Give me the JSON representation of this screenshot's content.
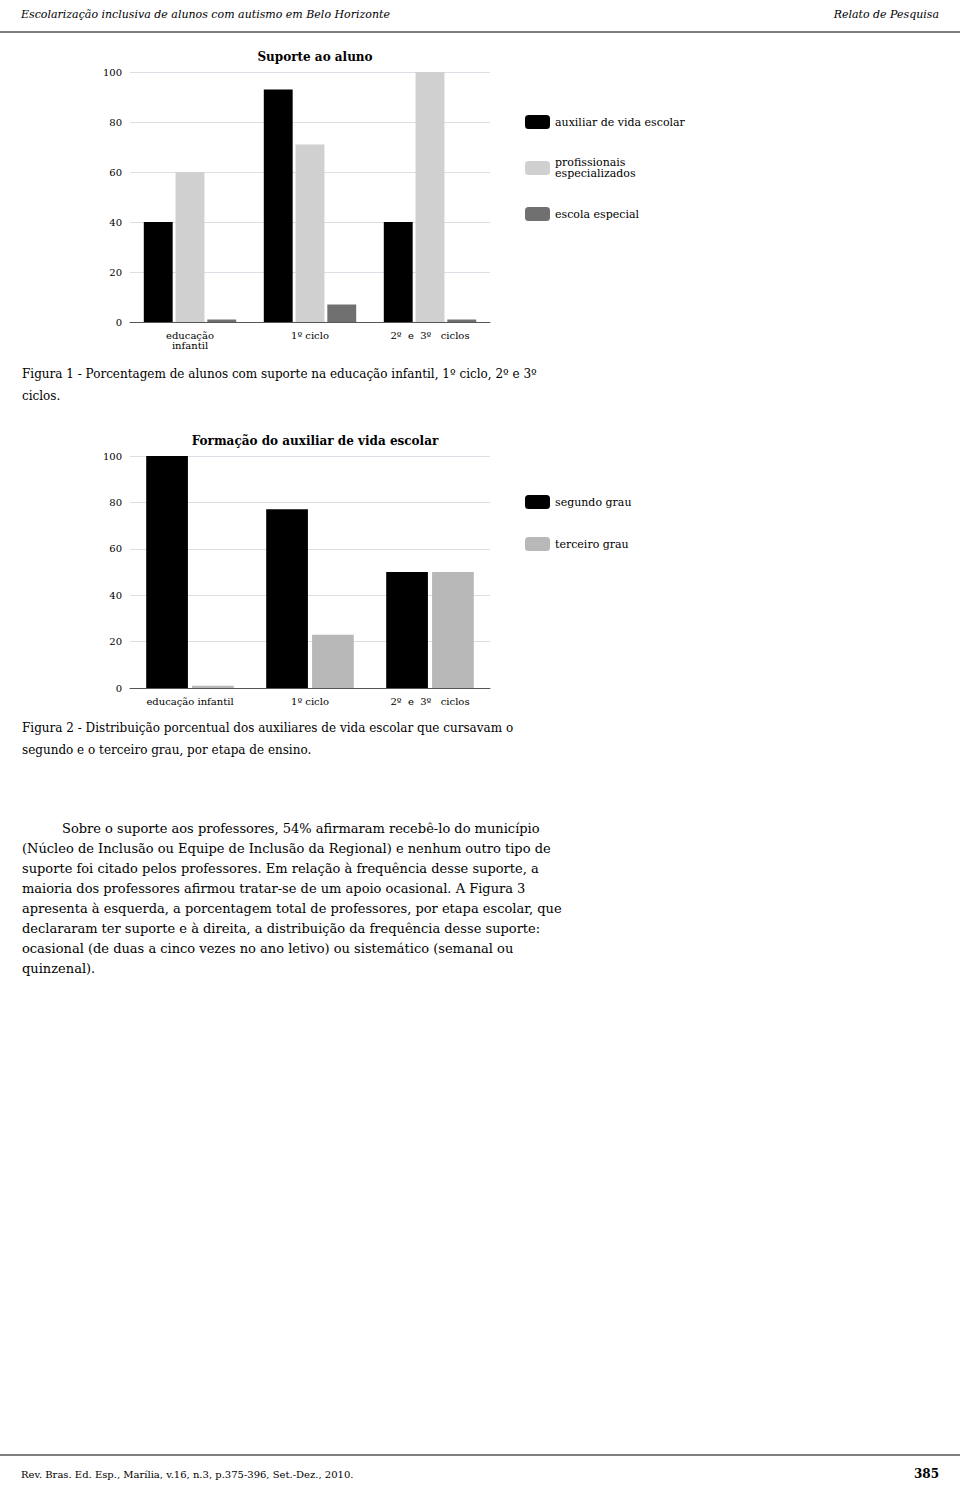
{
  "header": [
    "Escolarização inclusiva de alunos com autismo em Belo Horizonte",
    "Relato de Pesquisa"
  ],
  "footer": [
    "Rev. Bras. Ed. Esp., Marília, v.16, n.3, p.375-396, Set.-Dez., 2010.",
    "385"
  ],
  "body": [
    "Sobre o suporte aos professores, 54% afirmaram recebê-lo do município",
    "(Núcleo de Inclusão ou Equipe de Inclusão da Regional) e nenhum outro tipo de",
    "suporte foi citado pelos professores. Em relação à frequência desse suporte, a",
    "maioria dos professores afirmou tratar-se de um apoio ocasional. A Figura 3",
    "apresenta à esquerda, a porcentagem total de professores, por etapa escolar, que",
    "declararam ter suporte e à direita, a distribuição da frequência desse suporte:",
    "ocasional (de duas a cinco vezes no ano letivo) ou sistemático (semanal ou",
    "quinzenal)."
  ],
  "chart_data": [
    {
      "type": "bar",
      "title": "Suporte ao aluno",
      "categories": [
        "educação\ninfantil",
        "1º ciclo",
        "2º  e  3º   ciclos"
      ],
      "series": [
        {
          "name": "auxiliar de vida escolar",
          "color": "#000000",
          "values": [
            40,
            93,
            40
          ]
        },
        {
          "name": "profissionais\nespecializados",
          "color": "#d0d0d0",
          "values": [
            60,
            71,
            100
          ]
        },
        {
          "name": "escola especial",
          "color": "#707070",
          "values": [
            1,
            7,
            1
          ]
        }
      ],
      "ylim": [
        0,
        100
      ],
      "yticks": [
        0,
        20,
        40,
        60,
        80,
        100
      ],
      "grid": true,
      "legend": "right",
      "annotations": [
        "Figura 1 - Porcentagem de alunos com suporte na educação infantil, 1º ciclo, 2º e 3º",
        "ciclos."
      ]
    },
    {
      "type": "bar",
      "title": "Formação do auxiliar de vida escolar",
      "categories": [
        "educação infantil",
        "1º ciclo",
        "2º  e  3º   ciclos"
      ],
      "series": [
        {
          "name": "segundo grau",
          "color": "#000000",
          "values": [
            100,
            77,
            50
          ]
        },
        {
          "name": "terceiro grau",
          "color": "#b8b8b8",
          "values": [
            1,
            23,
            50
          ]
        }
      ],
      "ylim": [
        0,
        100
      ],
      "yticks": [
        0,
        20,
        40,
        60,
        80,
        100
      ],
      "grid": true,
      "legend": "right",
      "annotations": [
        "Figura 2 - Distribuição porcentual dos auxiliares de vida escolar que cursavam o",
        "segundo e o terceiro grau, por etapa de ensino."
      ]
    }
  ]
}
